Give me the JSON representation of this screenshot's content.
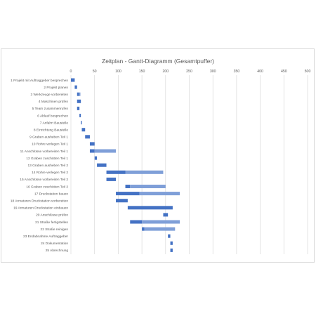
{
  "chart_data": {
    "type": "bar",
    "title": "Zeitplan - Gantt-Diagramm (Gesamtpuffer)",
    "xlim": [
      0,
      500
    ],
    "xticks": [
      "0",
      "50",
      "100",
      "150",
      "200",
      "250",
      "300",
      "350",
      "400",
      "450",
      "500"
    ],
    "grid": true,
    "axis_position": "top",
    "colors": {
      "duration": "#4472c4",
      "buffer": "#7f9fd8",
      "grid": "#d9d9d9",
      "text": "#595959"
    },
    "tasks": [
      {
        "label": "1 Projekt mit Auftraggeber besprechen",
        "start": 0,
        "duration": 8,
        "buffer": 0
      },
      {
        "label": "2 Projekt planen",
        "start": 8,
        "duration": 5,
        "buffer": 0
      },
      {
        "label": "3 Werkzeuge vorbereiten",
        "start": 13,
        "duration": 4,
        "buffer": 3
      },
      {
        "label": "4 Maschinen prüfen",
        "start": 13,
        "duration": 8,
        "buffer": 0
      },
      {
        "label": "5 Team zusammenrufen",
        "start": 13,
        "duration": 5,
        "buffer": 0
      },
      {
        "label": "6 Ablauf besprechen",
        "start": 18,
        "duration": 3,
        "buffer": 0
      },
      {
        "label": "7 Anfahrt Baustelle",
        "start": 21,
        "duration": 2,
        "buffer": 0
      },
      {
        "label": "8 Einrichtung Baustelle",
        "start": 23,
        "duration": 7,
        "buffer": 0
      },
      {
        "label": "9 Graben ausheben Teil 1",
        "start": 30,
        "duration": 10,
        "buffer": 0
      },
      {
        "label": "10 Rohre verlegen Teil 1",
        "start": 40,
        "duration": 10,
        "buffer": 0
      },
      {
        "label": "11 Anschlüsse vorbereiten Teil 1",
        "start": 40,
        "duration": 10,
        "buffer": 45
      },
      {
        "label": "12 Graben zuschütten Teil 1",
        "start": 50,
        "duration": 5,
        "buffer": 0
      },
      {
        "label": "13 Graben ausheben Teil 2",
        "start": 55,
        "duration": 20,
        "buffer": 0
      },
      {
        "label": "14 Rohre verlegen Teil 2",
        "start": 75,
        "duration": 40,
        "buffer": 80
      },
      {
        "label": "15 Anschlüsse vorbereiten Teil 2",
        "start": 75,
        "duration": 20,
        "buffer": 0
      },
      {
        "label": "16 Graben zuschütten Teil 2",
        "start": 115,
        "duration": 10,
        "buffer": 75
      },
      {
        "label": "17 Druckstation bauen",
        "start": 95,
        "duration": 50,
        "buffer": 85
      },
      {
        "label": "18 Armaturen Druckstation vorbereiten",
        "start": 95,
        "duration": 25,
        "buffer": 0
      },
      {
        "label": "19 Armaturen Druckstation einbauen",
        "start": 120,
        "duration": 95,
        "buffer": 0
      },
      {
        "label": "20 Anschlüsse prüfen",
        "start": 195,
        "duration": 10,
        "buffer": 0
      },
      {
        "label": "21 Straße fertigstellen",
        "start": 125,
        "duration": 25,
        "buffer": 80
      },
      {
        "label": "22 Straße reinigen",
        "start": 150,
        "duration": 5,
        "buffer": 65
      },
      {
        "label": "23 Endabnahme Auftraggeber",
        "start": 205,
        "duration": 5,
        "buffer": 0
      },
      {
        "label": "24 Dokumentation",
        "start": 210,
        "duration": 5,
        "buffer": 0
      },
      {
        "label": "25 Abrechnung",
        "start": 210,
        "duration": 5,
        "buffer": 0
      }
    ]
  }
}
